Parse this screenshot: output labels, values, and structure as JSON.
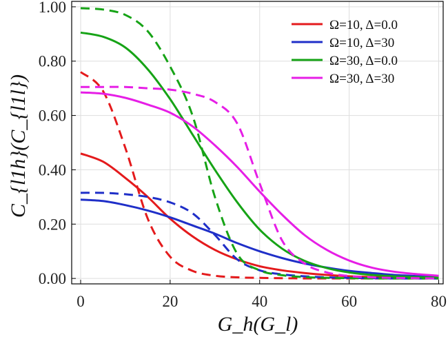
{
  "chart_data": {
    "type": "line",
    "title": "",
    "xlabel": "G_h(G_l)",
    "ylabel": "C_{l1h}(C_{l1l})",
    "xlim": [
      -2,
      81
    ],
    "ylim": [
      -0.02,
      1.02
    ],
    "x_ticks": [
      0,
      20,
      40,
      60,
      80
    ],
    "x_tick_labels": [
      "0",
      "20",
      "40",
      "60",
      "80"
    ],
    "y_ticks": [
      0.0,
      0.2,
      0.4,
      0.6,
      0.8,
      1.0
    ],
    "y_tick_labels": [
      "0.00",
      "0.20",
      "0.40",
      "0.60",
      "0.80",
      "1.00"
    ],
    "grid": true,
    "legend_position": "top-right",
    "legend": [
      {
        "label": "Ω=10, Δ=0.0",
        "color": "#e41a1c"
      },
      {
        "label": "Ω=10, Δ=30",
        "color": "#1f2fc8"
      },
      {
        "label": "Ω=30, Δ=0.0",
        "color": "#16a316"
      },
      {
        "label": "Ω=30, Δ=30",
        "color": "#e61ee6"
      }
    ],
    "x": [
      0,
      5,
      10,
      15,
      20,
      25,
      30,
      35,
      40,
      45,
      50,
      55,
      60,
      65,
      70,
      75,
      80
    ],
    "series": [
      {
        "name": "Ω=10, Δ=0.0",
        "style": "solid",
        "color": "#e41a1c",
        "values": [
          0.46,
          0.43,
          0.37,
          0.3,
          0.22,
          0.155,
          0.105,
          0.07,
          0.045,
          0.03,
          0.02,
          0.013,
          0.008,
          0.005,
          0.003,
          0.002,
          0.001
        ]
      },
      {
        "name": "Ω=10, Δ=0.0",
        "style": "dashed",
        "color": "#e41a1c",
        "values": [
          0.76,
          0.69,
          0.48,
          0.22,
          0.08,
          0.028,
          0.01,
          0.004,
          0.002,
          0.001,
          0.0,
          0.0,
          0.0,
          0.0,
          0.0,
          0.0,
          0.0
        ]
      },
      {
        "name": "Ω=10, Δ=30",
        "style": "solid",
        "color": "#1f2fc8",
        "values": [
          0.29,
          0.285,
          0.27,
          0.25,
          0.225,
          0.195,
          0.165,
          0.13,
          0.1,
          0.075,
          0.055,
          0.04,
          0.028,
          0.02,
          0.013,
          0.009,
          0.006
        ]
      },
      {
        "name": "Ω=10, Δ=30",
        "style": "dashed",
        "color": "#1f2fc8",
        "values": [
          0.315,
          0.315,
          0.31,
          0.3,
          0.28,
          0.24,
          0.16,
          0.07,
          0.03,
          0.015,
          0.008,
          0.004,
          0.002,
          0.001,
          0.0,
          0.0,
          0.0
        ]
      },
      {
        "name": "Ω=30, Δ=0.0",
        "style": "solid",
        "color": "#16a316",
        "values": [
          0.905,
          0.89,
          0.85,
          0.77,
          0.66,
          0.53,
          0.4,
          0.28,
          0.18,
          0.11,
          0.065,
          0.038,
          0.022,
          0.013,
          0.008,
          0.005,
          0.003
        ]
      },
      {
        "name": "Ω=30, Δ=0.0",
        "style": "dashed",
        "color": "#16a316",
        "values": [
          0.995,
          0.99,
          0.97,
          0.91,
          0.78,
          0.6,
          0.3,
          0.09,
          0.03,
          0.012,
          0.005,
          0.002,
          0.001,
          0.0,
          0.0,
          0.0,
          0.0
        ]
      },
      {
        "name": "Ω=30, Δ=30",
        "style": "solid",
        "color": "#e61ee6",
        "values": [
          0.685,
          0.68,
          0.665,
          0.64,
          0.61,
          0.56,
          0.49,
          0.41,
          0.32,
          0.235,
          0.16,
          0.105,
          0.066,
          0.04,
          0.025,
          0.016,
          0.01
        ]
      },
      {
        "name": "Ω=30, Δ=30",
        "style": "dashed",
        "color": "#e61ee6",
        "values": [
          0.705,
          0.705,
          0.705,
          0.7,
          0.695,
          0.68,
          0.65,
          0.57,
          0.35,
          0.14,
          0.055,
          0.022,
          0.009,
          0.004,
          0.002,
          0.001,
          0.0
        ]
      }
    ]
  }
}
